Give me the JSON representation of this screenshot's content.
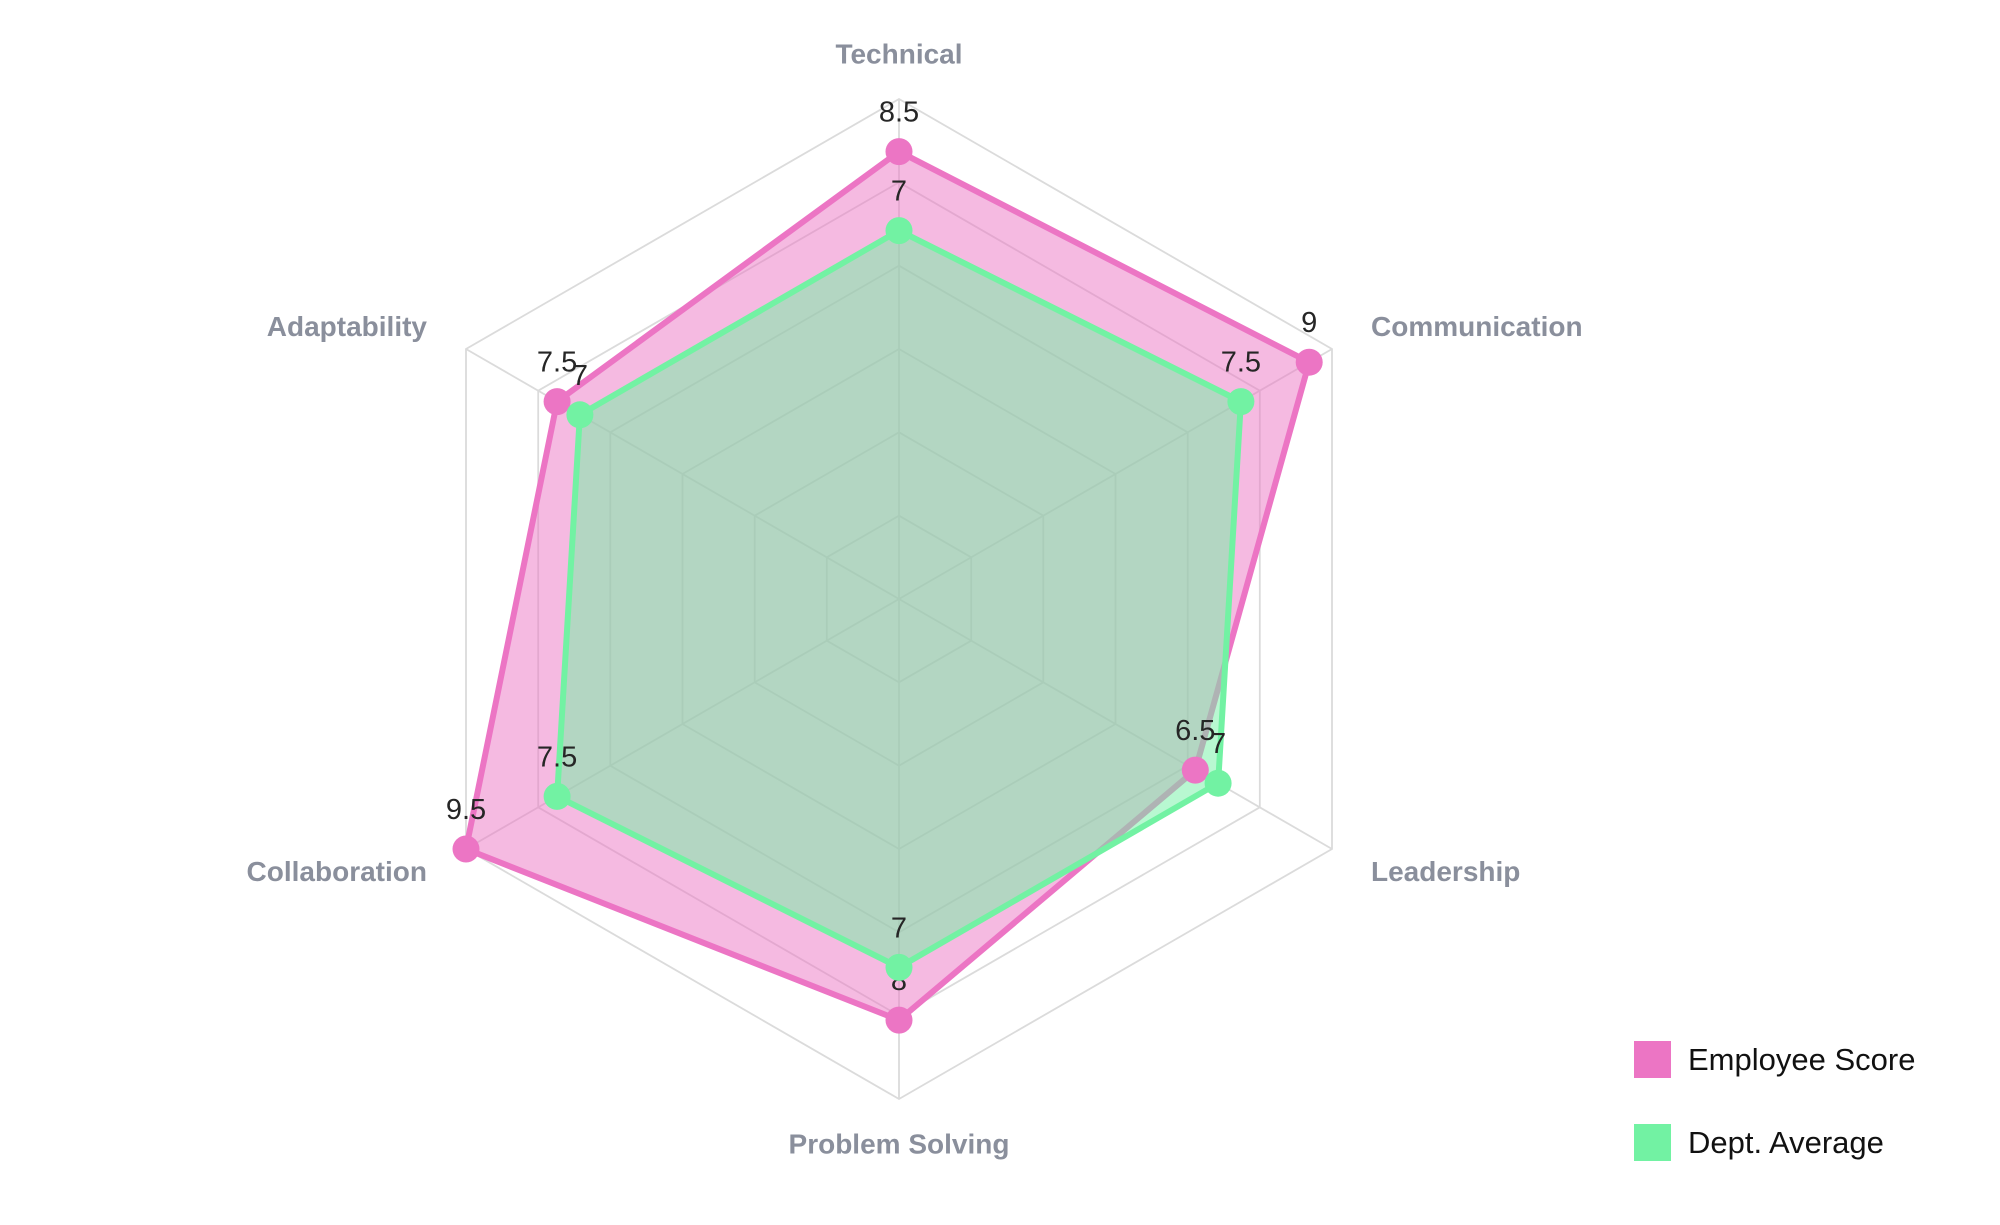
{
  "chart_data": {
    "type": "radar",
    "categories": [
      "Technical",
      "Communication",
      "Leadership",
      "Problem Solving",
      "Collaboration",
      "Adaptability"
    ],
    "series": [
      {
        "name": "Employee Score",
        "values": [
          8.5,
          9,
          6.5,
          8,
          9.5,
          7.5
        ],
        "color": "#EC75C4",
        "fill_opacity": 0.5
      },
      {
        "name": "Dept. Average",
        "values": [
          7,
          7.5,
          7,
          7,
          7.5,
          7
        ],
        "color": "#72F2A3",
        "fill_opacity": 0.5
      }
    ],
    "rmin": 0,
    "rmax": 9.5,
    "rings": 6,
    "grid": true,
    "grid_color": "#DBDBDB",
    "axis_label_color": "#8A8F9C",
    "value_label_color": "#262626",
    "background": "#FFFFFF",
    "legend_position": "bottom-right",
    "title": "",
    "value_labels_shown": true
  }
}
